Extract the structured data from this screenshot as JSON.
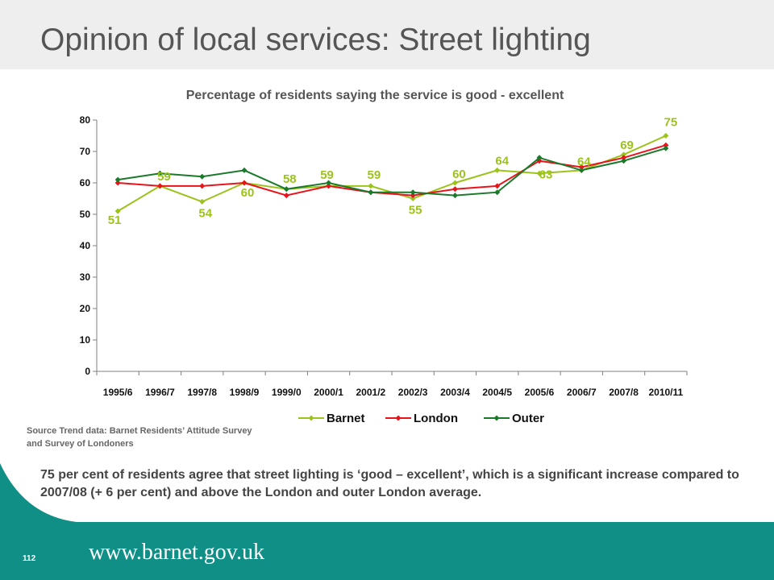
{
  "slide": {
    "title": "Opinion of local services: Street lighting",
    "source_text": "Source Trend data:  Barnet  Residents’ Attitude  Survey and Survey of Londoners",
    "summary": "75 per cent of residents agree that street lighting is  ‘good – excellent’, which is a significant increase compared to 2007/08 (+ 6 per cent) and above the London and outer London average.",
    "page_number": "112",
    "website": "www.barnet.gov.uk"
  },
  "colors": {
    "brand_teal": "#0f8f86",
    "header_grey": "#eeeeee"
  },
  "chart_data": {
    "type": "line",
    "title": "Percentage of residents saying the service is good - excellent",
    "categories": [
      "1995/6",
      "1996/7",
      "1997/8",
      "1998/9",
      "1999/0",
      "2000/1",
      "2001/2",
      "2002/3",
      "2003/4",
      "2004/5",
      "2005/6",
      "2006/7",
      "2007/8",
      "2010/11"
    ],
    "ylim": [
      0,
      80
    ],
    "yticks": [
      0,
      10,
      20,
      30,
      40,
      50,
      60,
      70,
      80
    ],
    "grid": false,
    "legend_position": "bottom",
    "series": [
      {
        "name": "Barnet",
        "color": "#9cc31c",
        "values": [
          51,
          59,
          54,
          60,
          58,
          59,
          59,
          55,
          60,
          64,
          63,
          64,
          69,
          75
        ],
        "data_labels": [
          "51",
          "59",
          "54",
          "60",
          "58",
          "59",
          "59",
          "55",
          "60",
          "64",
          "63",
          "64",
          "69",
          "75"
        ]
      },
      {
        "name": "London",
        "color": "#e8141c",
        "values": [
          60,
          59,
          59,
          60,
          56,
          59,
          57,
          56,
          58,
          59,
          67,
          65,
          68,
          72
        ]
      },
      {
        "name": "Outer",
        "color": "#1a7a2a",
        "values": [
          61,
          63,
          62,
          64,
          58,
          60,
          57,
          57,
          56,
          57,
          68,
          64,
          67,
          71
        ]
      }
    ]
  }
}
